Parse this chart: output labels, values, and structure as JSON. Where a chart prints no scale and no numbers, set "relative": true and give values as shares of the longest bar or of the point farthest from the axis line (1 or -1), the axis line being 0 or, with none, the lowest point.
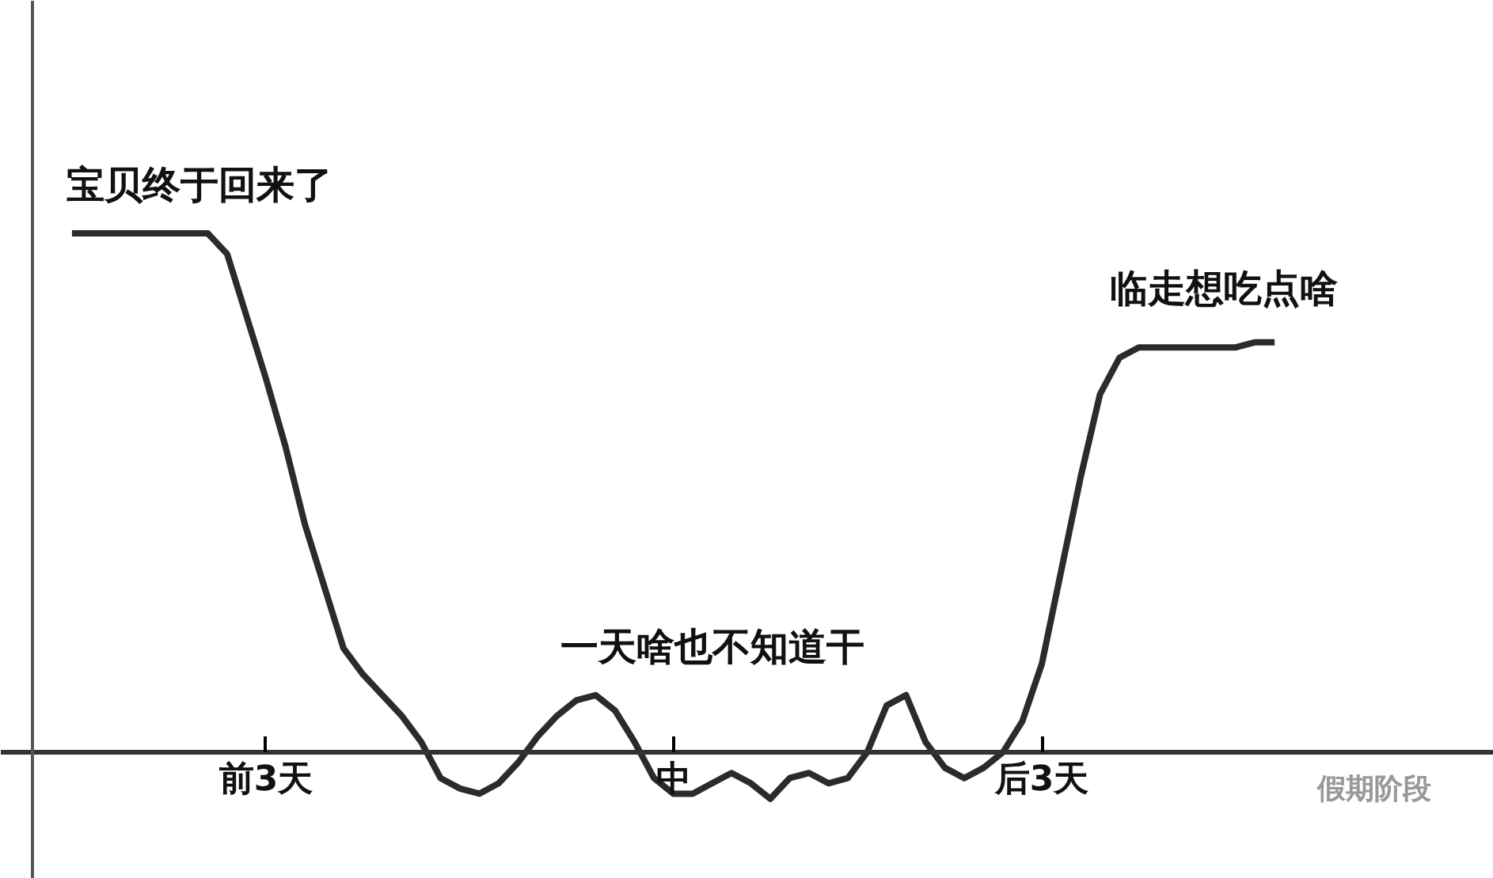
{
  "chart_data": {
    "type": "line",
    "relative": true,
    "xlabel": "假期阶段",
    "color": "#2b2b2b",
    "categories": [
      null,
      null,
      null,
      null,
      null,
      null,
      null,
      null,
      null,
      null,
      "前3天",
      null,
      null,
      null,
      null,
      null,
      null,
      null,
      null,
      null,
      null,
      null,
      null,
      null,
      null,
      null,
      null,
      null,
      null,
      null,
      null,
      "中",
      null,
      null,
      null,
      null,
      null,
      null,
      null,
      null,
      null,
      null,
      null,
      null,
      null,
      null,
      null,
      null,
      null,
      null,
      "后3天",
      null,
      null,
      null,
      null,
      null,
      null,
      null,
      null,
      null,
      null,
      null,
      null
    ],
    "values": [
      1,
      1,
      1,
      1,
      1,
      1,
      1,
      1,
      0.96,
      0.84,
      0.72,
      0.59,
      0.44,
      0.32,
      0.2,
      0.15,
      0.11,
      0.07,
      0.02,
      -0.05,
      -0.07,
      -0.08,
      -0.06,
      -0.02,
      0.03,
      0.07,
      0.1,
      0.11,
      0.08,
      0.02,
      -0.05,
      -0.08,
      -0.08,
      -0.06,
      -0.04,
      -0.06,
      -0.09,
      -0.05,
      -0.04,
      -0.06,
      -0.05,
      0,
      0.09,
      0.11,
      0.02,
      -0.03,
      -0.05,
      -0.03,
      0,
      0.06,
      0.17,
      0.35,
      0.53,
      0.69,
      0.76,
      0.78,
      0.78,
      0.78,
      0.78,
      0.78,
      0.78,
      0.79,
      0.79
    ],
    "annotations": [
      "宝贝终于回来了",
      "一天啥也不知道干",
      "临走想吃点啥"
    ],
    "grid": false
  }
}
